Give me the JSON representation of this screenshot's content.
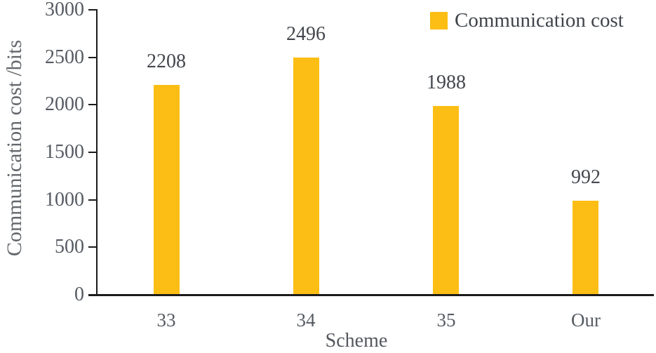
{
  "chart_data": {
    "type": "bar",
    "categories": [
      "33",
      "34",
      "35",
      "Our"
    ],
    "series": [
      {
        "name": "Communication cost",
        "values": [
          2208,
          2496,
          1988,
          992
        ]
      }
    ],
    "value_labels": [
      "2208",
      "2496",
      "1988",
      "992"
    ],
    "xlabel": "Scheme",
    "ylabel": "Communication cost /bits",
    "ylim": [
      0,
      3000
    ],
    "yticks": [
      0,
      500,
      1000,
      1500,
      2000,
      2500,
      3000
    ],
    "grid": false,
    "legend": {
      "label": "Communication cost",
      "position": "top-right"
    },
    "colors": {
      "bar": "#FCBE14",
      "axis": "#1b1b1b",
      "tick_text": "#565b63",
      "value_text": "#43474d",
      "axis_title_text": "#63676c"
    }
  }
}
